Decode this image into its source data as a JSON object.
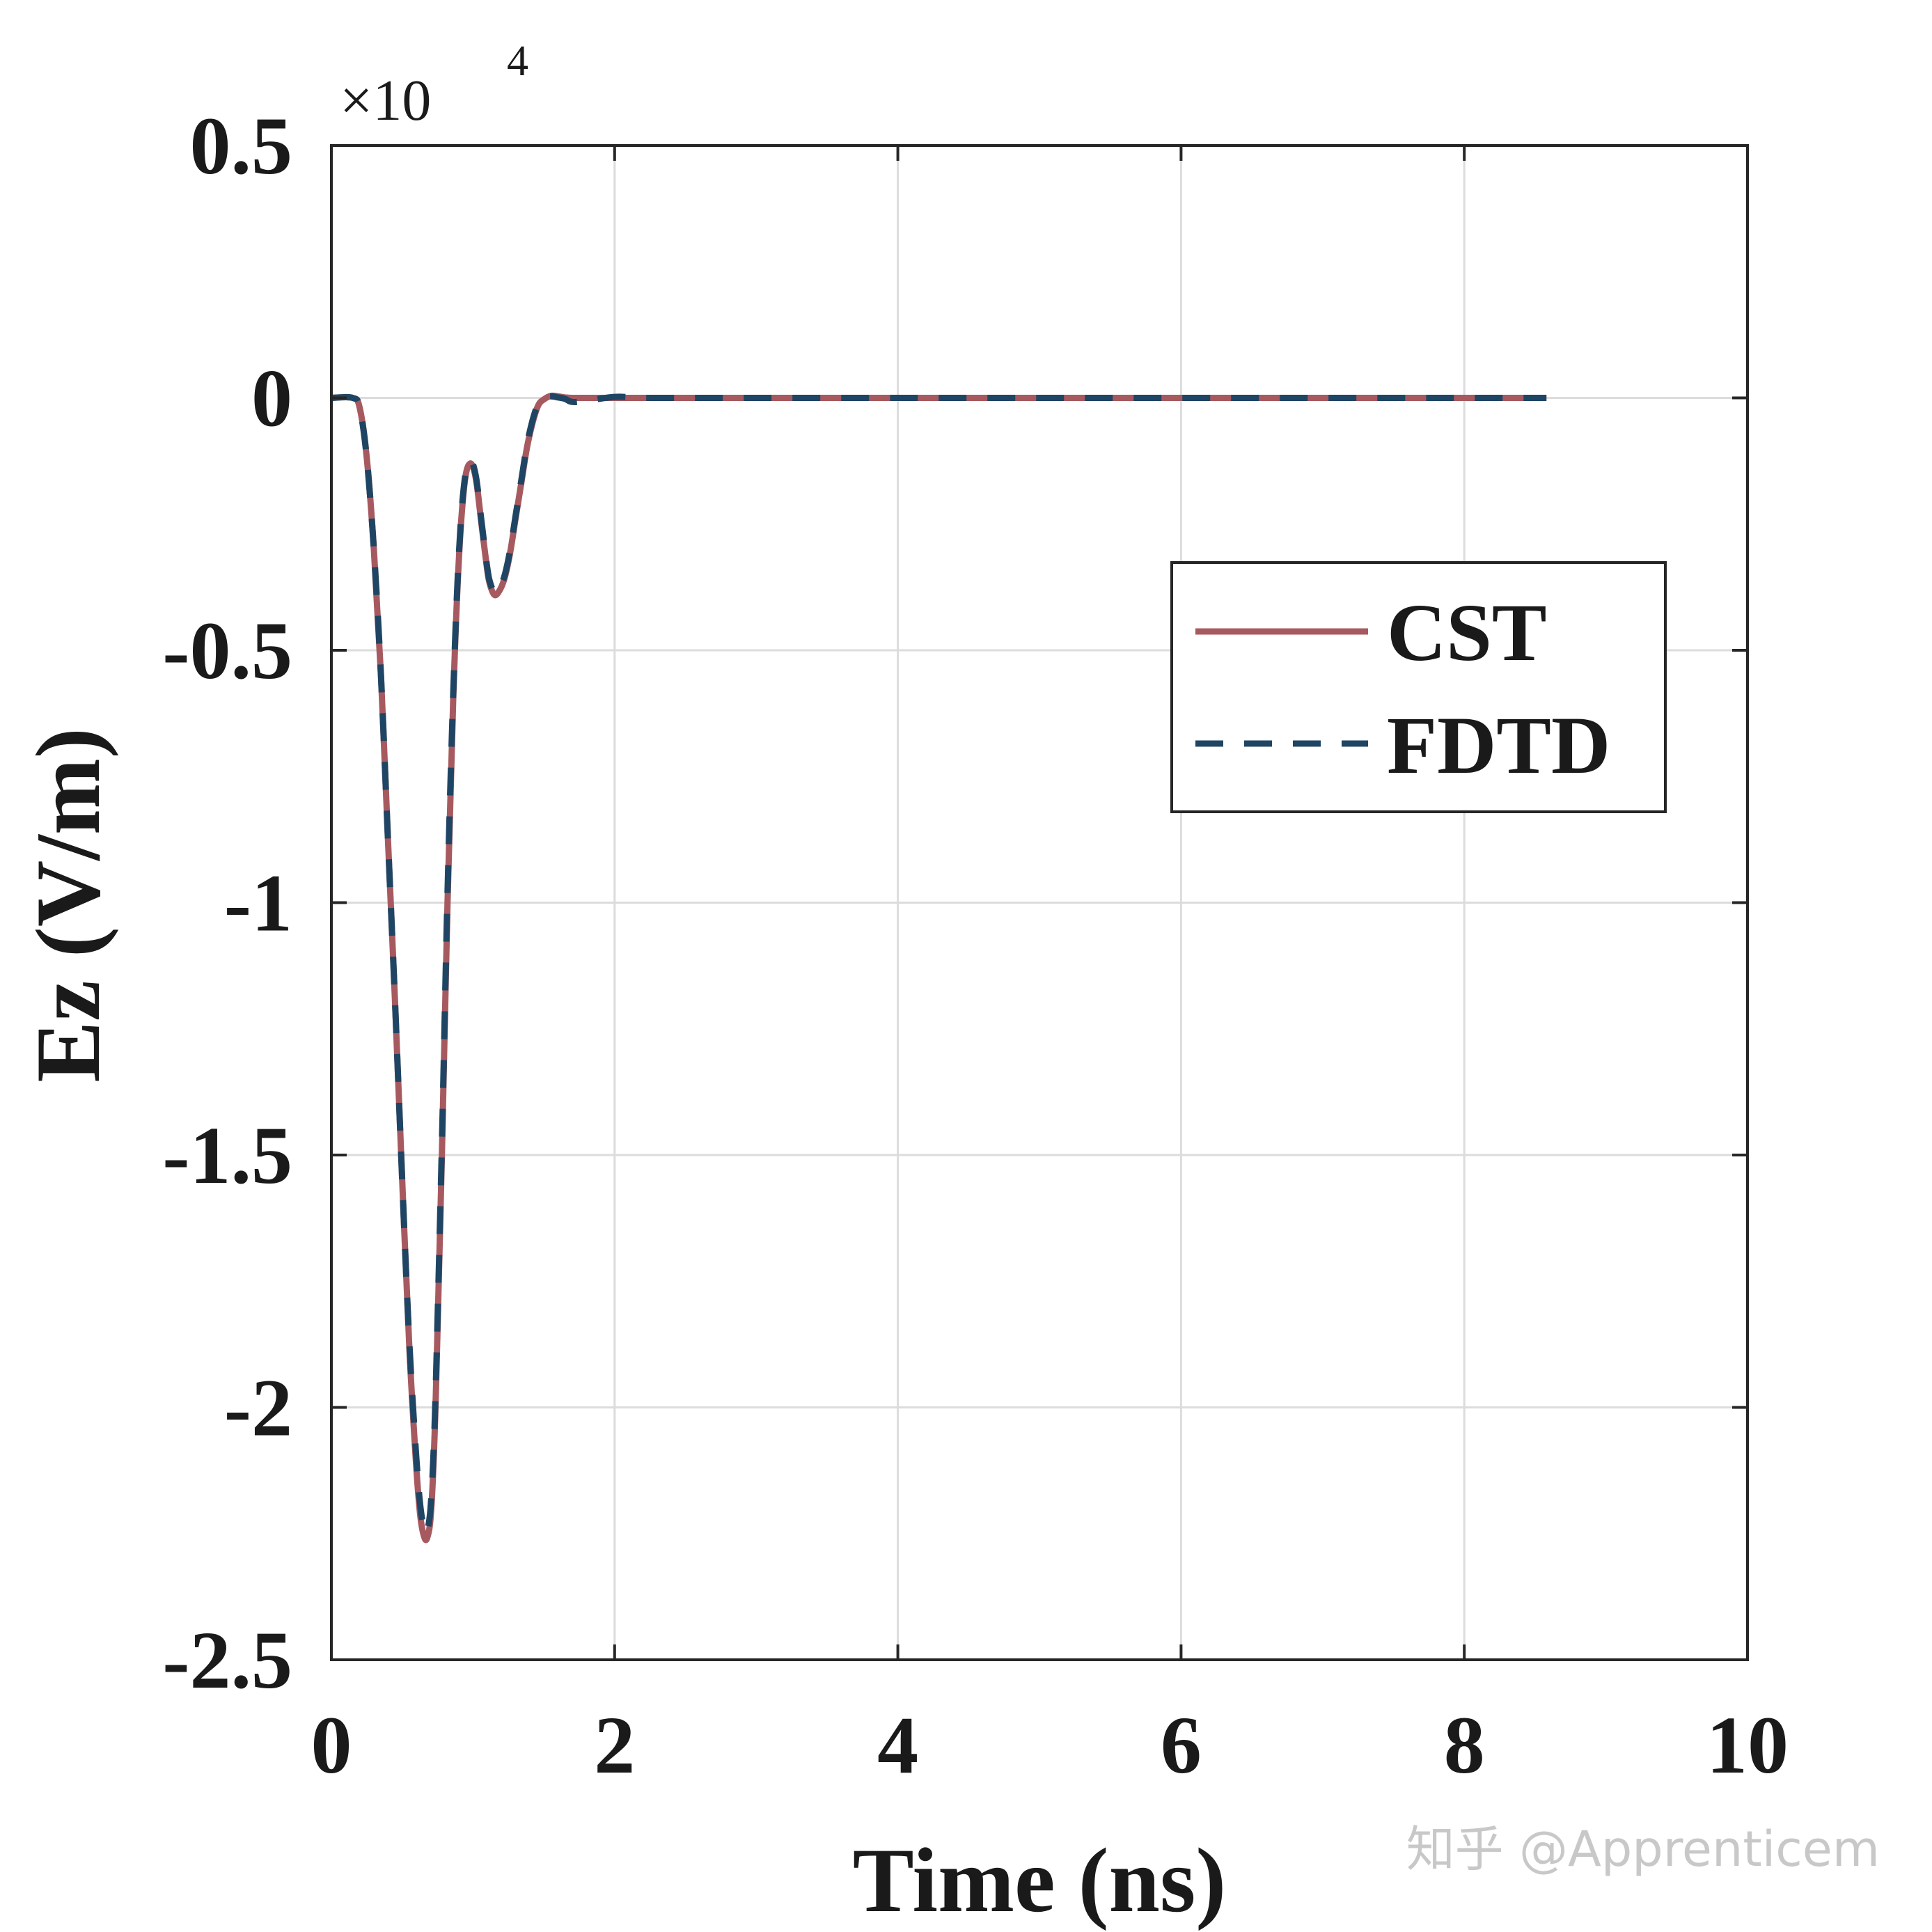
{
  "chart_data": {
    "type": "line",
    "title": "",
    "xlabel": "Time (ns)",
    "ylabel": "Ez (V/m)",
    "xlim": [
      0,
      10
    ],
    "ylim": [
      -2.5,
      0.5
    ],
    "xticks": [
      0,
      2,
      4,
      6,
      8,
      10
    ],
    "xtick_labels": [
      "0",
      "2",
      "4",
      "6",
      "8",
      "10"
    ],
    "yticks": [
      0.5,
      0,
      -0.5,
      -1,
      -1.5,
      -2,
      -2.5
    ],
    "ytick_labels": [
      "0.5",
      "0",
      "-0.5",
      "-1",
      "-1.5",
      "-2",
      "-2.5"
    ],
    "y_multiplier_base": "×10",
    "y_multiplier_exp": "4",
    "grid": true,
    "legend_position": "upper-right",
    "series": [
      {
        "name": "CST",
        "color": "#A65A5F",
        "style": "solid",
        "x": [
          0,
          0.15,
          0.2,
          0.25,
          0.3,
          0.35,
          0.4,
          0.45,
          0.5,
          0.55,
          0.6,
          0.63,
          0.66,
          0.68,
          0.7,
          0.72,
          0.74,
          0.78,
          0.82,
          0.86,
          0.9,
          0.94,
          0.98,
          1.02,
          1.06,
          1.1,
          1.12,
          1.15,
          1.18,
          1.22,
          1.26,
          1.3,
          1.34,
          1.38,
          1.42,
          1.46,
          1.5,
          1.55,
          1.6,
          1.65,
          1.7,
          1.8,
          2.0,
          2.2,
          2.5,
          3.0,
          4.0,
          5.0,
          6.0,
          7.0,
          8.0,
          8.58
        ],
        "y": [
          0,
          0,
          -0.02,
          -0.12,
          -0.3,
          -0.55,
          -0.88,
          -1.2,
          -1.55,
          -1.88,
          -2.12,
          -2.22,
          -2.26,
          -2.255,
          -2.22,
          -2.12,
          -1.95,
          -1.5,
          -1.0,
          -0.6,
          -0.32,
          -0.17,
          -0.13,
          -0.16,
          -0.25,
          -0.34,
          -0.37,
          -0.39,
          -0.385,
          -0.36,
          -0.31,
          -0.24,
          -0.17,
          -0.1,
          -0.05,
          -0.015,
          -0.003,
          0.004,
          0.003,
          0.001,
          0,
          0,
          0,
          0,
          0,
          0,
          0,
          0,
          0,
          0,
          0,
          0
        ]
      },
      {
        "name": "FDTD",
        "color": "#1F4564",
        "style": "dashed",
        "x": [
          0,
          0.15,
          0.2,
          0.25,
          0.3,
          0.35,
          0.4,
          0.45,
          0.5,
          0.55,
          0.6,
          0.63,
          0.66,
          0.68,
          0.7,
          0.72,
          0.74,
          0.78,
          0.82,
          0.86,
          0.9,
          0.94,
          0.98,
          1.02,
          1.06,
          1.1,
          1.12,
          1.15,
          1.18,
          1.22,
          1.26,
          1.3,
          1.34,
          1.38,
          1.42,
          1.46,
          1.5,
          1.55,
          1.6,
          1.65,
          1.7,
          1.8,
          2.0,
          2.2,
          2.5,
          3.0,
          4.0,
          5.0,
          6.0,
          7.0,
          8.0,
          8.58
        ],
        "y": [
          0,
          0,
          -0.02,
          -0.12,
          -0.3,
          -0.55,
          -0.88,
          -1.2,
          -1.55,
          -1.87,
          -2.1,
          -2.2,
          -2.245,
          -2.24,
          -2.2,
          -2.1,
          -1.93,
          -1.48,
          -0.98,
          -0.59,
          -0.31,
          -0.165,
          -0.125,
          -0.155,
          -0.245,
          -0.335,
          -0.365,
          -0.385,
          -0.38,
          -0.355,
          -0.305,
          -0.235,
          -0.165,
          -0.095,
          -0.045,
          -0.012,
          0.0,
          0.003,
          0.001,
          -0.002,
          -0.008,
          -0.006,
          0.002,
          0,
          0,
          0,
          0,
          0,
          0,
          0,
          0,
          0
        ]
      }
    ]
  },
  "watermark": "知乎 @Apprenticem"
}
